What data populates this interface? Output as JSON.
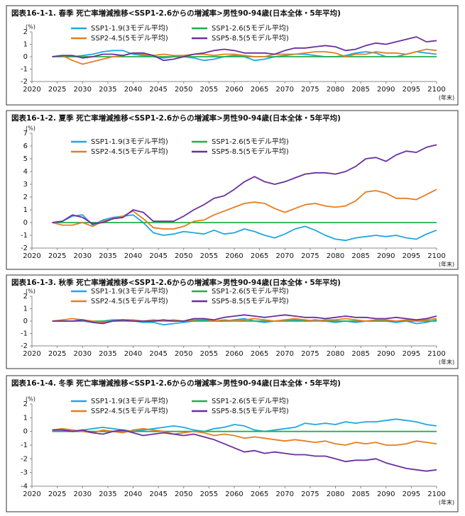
{
  "chart_data": [
    {
      "type": "line",
      "title": "図表16-1-1. 春季 死亡率増減推移<SSP1-2.6からの増減率>男性90-94歳(日本全体・5年平均)",
      "y_label": "(%)",
      "x_label": "(年末)",
      "x": [
        2024,
        2026,
        2028,
        2030,
        2032,
        2034,
        2036,
        2038,
        2040,
        2042,
        2044,
        2046,
        2048,
        2050,
        2052,
        2054,
        2056,
        2058,
        2060,
        2062,
        2064,
        2066,
        2068,
        2070,
        2072,
        2074,
        2076,
        2078,
        2080,
        2082,
        2084,
        2086,
        2088,
        2090,
        2092,
        2094,
        2096,
        2098,
        2100
      ],
      "xlim": [
        2020,
        2100
      ],
      "xticks": [
        2020,
        2025,
        2030,
        2035,
        2040,
        2045,
        2050,
        2055,
        2060,
        2065,
        2070,
        2075,
        2080,
        2085,
        2090,
        2095,
        2100
      ],
      "ylim": [
        -2,
        2
      ],
      "yticks": [
        -2,
        -1,
        0,
        1,
        2
      ],
      "series": [
        {
          "name": "SSP1-1.9(3モデル平均)",
          "color": "#1fa8de",
          "values": [
            0,
            0.1,
            0,
            0.1,
            0.2,
            0.4,
            0.5,
            0.5,
            0.2,
            0.1,
            0,
            -0.1,
            0,
            0,
            -0.1,
            -0.3,
            -0.2,
            0,
            0.1,
            0,
            -0.3,
            -0.2,
            0,
            0.1,
            0.2,
            0.2,
            0.1,
            0,
            0,
            0.1,
            0.3,
            0.4,
            0.3,
            0,
            0,
            0.2,
            0.4,
            0.3,
            0.2
          ]
        },
        {
          "name": "SSP1-2.6(5モデル平均)",
          "color": "#21b04b",
          "values": [
            0,
            0,
            0,
            0,
            0,
            0,
            0,
            0,
            0,
            0,
            0,
            0,
            0,
            0,
            0,
            0,
            0,
            0,
            0,
            0,
            0,
            0,
            0,
            0,
            0,
            0,
            0,
            0,
            0,
            0,
            0,
            0,
            0,
            0,
            0,
            0,
            0,
            0,
            0
          ]
        },
        {
          "name": "SSP2-4.5(5モデル平均)",
          "color": "#e57e22",
          "values": [
            0,
            0.1,
            -0.3,
            -0.6,
            -0.4,
            -0.2,
            0,
            0.1,
            0.3,
            0.2,
            0.1,
            0.2,
            0.1,
            0.1,
            0.2,
            0.2,
            0.1,
            0.2,
            0.2,
            0.1,
            0,
            0,
            0.2,
            0.2,
            0.2,
            0.3,
            0.4,
            0.4,
            0.3,
            0,
            0.2,
            0.2,
            0.4,
            0.3,
            0.3,
            0.2,
            0.4,
            0.6,
            0.5
          ]
        },
        {
          "name": "SSP5-8.5(5モデル平均)",
          "color": "#6b2f9e",
          "values": [
            0,
            0.1,
            0.1,
            -0.1,
            0,
            0.2,
            0.2,
            0.1,
            0.3,
            0.3,
            0.1,
            -0.3,
            -0.2,
            0,
            0.2,
            0.3,
            0.5,
            0.6,
            0.5,
            0.3,
            0.3,
            0.3,
            0.2,
            0.5,
            0.7,
            0.7,
            0.8,
            0.9,
            0.8,
            0.5,
            0.6,
            0.9,
            1.1,
            1.0,
            1.2,
            1.4,
            1.6,
            1.2,
            1.3
          ]
        }
      ]
    },
    {
      "type": "line",
      "title": "図表16-1-2. 夏季 死亡率増減推移<SSP1-2.6からの増減率>男性90-94歳(日本全体・5年平均)",
      "y_label": "(%)",
      "x_label": "(年末)",
      "x": [
        2024,
        2026,
        2028,
        2030,
        2032,
        2034,
        2036,
        2038,
        2040,
        2042,
        2044,
        2046,
        2048,
        2050,
        2052,
        2054,
        2056,
        2058,
        2060,
        2062,
        2064,
        2066,
        2068,
        2070,
        2072,
        2074,
        2076,
        2078,
        2080,
        2082,
        2084,
        2086,
        2088,
        2090,
        2092,
        2094,
        2096,
        2098,
        2100
      ],
      "xlim": [
        2020,
        2100
      ],
      "xticks": [
        2020,
        2025,
        2030,
        2035,
        2040,
        2045,
        2050,
        2055,
        2060,
        2065,
        2070,
        2075,
        2080,
        2085,
        2090,
        2095,
        2100
      ],
      "ylim": [
        -2,
        7
      ],
      "yticks": [
        -2,
        -1,
        0,
        1,
        2,
        3,
        4,
        5,
        6,
        7
      ],
      "series": [
        {
          "name": "SSP1-1.9(3モデル平均)",
          "color": "#1fa8de",
          "values": [
            0,
            0.1,
            0.5,
            0.6,
            -0.2,
            0.2,
            0.4,
            0.5,
            0.6,
            0,
            -0.8,
            -1.0,
            -0.9,
            -0.7,
            -0.8,
            -0.9,
            -0.6,
            -0.9,
            -0.8,
            -0.5,
            -0.7,
            -1.0,
            -1.2,
            -0.9,
            -0.5,
            -0.3,
            -0.6,
            -1.0,
            -1.3,
            -1.4,
            -1.2,
            -1.1,
            -1.0,
            -1.1,
            -1.0,
            -1.2,
            -1.3,
            -0.9,
            -0.6
          ]
        },
        {
          "name": "SSP1-2.6(5モデル平均)",
          "color": "#21b04b",
          "values": [
            0,
            0,
            0,
            0,
            0,
            0,
            0,
            0,
            0,
            0,
            0,
            0,
            0,
            0,
            0,
            0,
            0,
            0,
            0,
            0,
            0,
            0,
            0,
            0,
            0,
            0,
            0,
            0,
            0,
            0,
            0,
            0,
            0,
            0,
            0,
            0,
            0,
            0,
            0
          ]
        },
        {
          "name": "SSP2-4.5(5モデル平均)",
          "color": "#e57e22",
          "values": [
            0,
            -0.2,
            -0.2,
            0,
            -0.3,
            0.1,
            0.3,
            0.5,
            0.9,
            0.3,
            -0.4,
            -0.5,
            -0.5,
            -0.3,
            0.1,
            0.2,
            0.6,
            0.9,
            1.2,
            1.5,
            1.6,
            1.5,
            1.1,
            0.8,
            1.1,
            1.4,
            1.5,
            1.3,
            1.2,
            1.3,
            1.7,
            2.4,
            2.5,
            2.3,
            1.9,
            1.9,
            1.8,
            2.2,
            2.6
          ]
        },
        {
          "name": "SSP5-8.5(5モデル平均)",
          "color": "#6b2f9e",
          "values": [
            0,
            0.1,
            0.6,
            0.4,
            -0.1,
            0,
            0.3,
            0.4,
            1.0,
            0.8,
            0.1,
            0.1,
            0.1,
            0.5,
            1.0,
            1.4,
            1.9,
            2.1,
            2.6,
            3.2,
            3.6,
            3.2,
            3.0,
            3.2,
            3.5,
            3.8,
            3.9,
            3.9,
            3.8,
            4.0,
            4.4,
            5.0,
            5.1,
            4.8,
            5.3,
            5.6,
            5.5,
            5.9,
            6.1
          ]
        }
      ]
    },
    {
      "type": "line",
      "title": "図表16-1-3. 秋季 死亡率増減推移<SSP1-2.6からの増減率>男性90-94歳(日本全体・5年平均)",
      "y_label": "(%)",
      "x_label": "(年末)",
      "x": [
        2024,
        2026,
        2028,
        2030,
        2032,
        2034,
        2036,
        2038,
        2040,
        2042,
        2044,
        2046,
        2048,
        2050,
        2052,
        2054,
        2056,
        2058,
        2060,
        2062,
        2064,
        2066,
        2068,
        2070,
        2072,
        2074,
        2076,
        2078,
        2080,
        2082,
        2084,
        2086,
        2088,
        2090,
        2092,
        2094,
        2096,
        2098,
        2100
      ],
      "xlim": [
        2020,
        2100
      ],
      "xticks": [
        2020,
        2025,
        2030,
        2035,
        2040,
        2045,
        2050,
        2055,
        2060,
        2065,
        2070,
        2075,
        2080,
        2085,
        2090,
        2095,
        2100
      ],
      "ylim": [
        -2,
        2
      ],
      "yticks": [
        -2,
        -1,
        0,
        1,
        2
      ],
      "series": [
        {
          "name": "SSP1-1.9(3モデル平均)",
          "color": "#1fa8de",
          "values": [
            0,
            0,
            0,
            0,
            -0.1,
            0,
            0.1,
            0.1,
            0,
            -0.1,
            -0.1,
            -0.3,
            -0.2,
            -0.1,
            0,
            0.1,
            0,
            0,
            0.1,
            0.2,
            0,
            -0.1,
            0,
            0.1,
            0.1,
            0,
            0.1,
            0,
            -0.1,
            0,
            -0.1,
            0,
            0,
            0,
            -0.1,
            0,
            -0.2,
            -0.1,
            0.1
          ]
        },
        {
          "name": "SSP1-2.6(5モデル平均)",
          "color": "#21b04b",
          "values": [
            0,
            0,
            0,
            0,
            0,
            0,
            0,
            0,
            0,
            0,
            0,
            0,
            0,
            0,
            0,
            0,
            0,
            0,
            0,
            0,
            0,
            0,
            0,
            0,
            0,
            0,
            0,
            0,
            0,
            0,
            0,
            0,
            0,
            0,
            0,
            0,
            0,
            0,
            0
          ]
        },
        {
          "name": "SSP2-4.5(5モデル平均)",
          "color": "#e57e22",
          "values": [
            0,
            0.1,
            0.2,
            0.1,
            0,
            -0.1,
            0,
            0.1,
            0.1,
            0,
            0.1,
            0,
            0.1,
            0,
            0.1,
            0.2,
            0,
            0.1,
            0,
            0.1,
            0.2,
            0.1,
            0,
            0.1,
            0.2,
            0.1,
            0,
            0.1,
            0.1,
            0.2,
            0.1,
            0,
            0.1,
            0.1,
            0,
            0.1,
            0,
            0.1,
            0.2
          ]
        },
        {
          "name": "SSP5-8.5(5モデル平均)",
          "color": "#6b2f9e",
          "values": [
            0,
            0,
            0,
            0.1,
            -0.1,
            -0.2,
            0,
            0.1,
            0,
            0,
            0,
            0.1,
            0,
            0,
            0.2,
            0.2,
            0.1,
            0.3,
            0.4,
            0.5,
            0.4,
            0.3,
            0.4,
            0.5,
            0.4,
            0.3,
            0.3,
            0.2,
            0.3,
            0.4,
            0.3,
            0.3,
            0.2,
            0.2,
            0.3,
            0.2,
            0.1,
            0.2,
            0.4
          ]
        }
      ]
    },
    {
      "type": "line",
      "title": "図表16-1-4. 冬季 死亡率増減推移<SSP1-2.6からの増減率>男性90-94歳(日本全体・5年平均)",
      "y_label": "(%)",
      "x_label": "(年末)",
      "x": [
        2024,
        2026,
        2028,
        2030,
        2032,
        2034,
        2036,
        2038,
        2040,
        2042,
        2044,
        2046,
        2048,
        2050,
        2052,
        2054,
        2056,
        2058,
        2060,
        2062,
        2064,
        2066,
        2068,
        2070,
        2072,
        2074,
        2076,
        2078,
        2080,
        2082,
        2084,
        2086,
        2088,
        2090,
        2092,
        2094,
        2096,
        2098,
        2100
      ],
      "xlim": [
        2020,
        2100
      ],
      "xticks": [
        2020,
        2025,
        2030,
        2035,
        2040,
        2045,
        2050,
        2055,
        2060,
        2065,
        2070,
        2075,
        2080,
        2085,
        2090,
        2095,
        2100
      ],
      "ylim": [
        -4,
        2
      ],
      "yticks": [
        -4,
        -3,
        -2,
        -1,
        0,
        1,
        2
      ],
      "series": [
        {
          "name": "SSP1-1.9(3モデル平均)",
          "color": "#1fa8de",
          "values": [
            0.1,
            0.2,
            0,
            0.1,
            0.2,
            0.3,
            0.2,
            0.1,
            0,
            0.1,
            0.2,
            0.3,
            0.4,
            0.3,
            0.1,
            0,
            0.2,
            0.3,
            0.5,
            0.4,
            0.1,
            0,
            0.1,
            0.2,
            0.3,
            0.6,
            0.5,
            0.6,
            0.5,
            0.7,
            0.6,
            0.7,
            0.7,
            0.8,
            0.9,
            0.8,
            0.7,
            0.5,
            0.4
          ]
        },
        {
          "name": "SSP1-2.6(5モデル平均)",
          "color": "#21b04b",
          "values": [
            0,
            0,
            0,
            0,
            0,
            0,
            0,
            0,
            0,
            0,
            0,
            0,
            0,
            0,
            0,
            0,
            0,
            0,
            0,
            0,
            0,
            0,
            0,
            0,
            0,
            0,
            0,
            0,
            0,
            0,
            0,
            0,
            0,
            0,
            0,
            0,
            0,
            0,
            0
          ]
        },
        {
          "name": "SSP2-4.5(5モデル平均)",
          "color": "#e57e22",
          "values": [
            0.1,
            0.2,
            0.1,
            0,
            -0.1,
            0.1,
            0,
            -0.1,
            0.1,
            0.2,
            0.1,
            0,
            -0.2,
            -0.1,
            0,
            -0.1,
            -0.3,
            -0.2,
            -0.3,
            -0.5,
            -0.4,
            -0.5,
            -0.6,
            -0.7,
            -0.6,
            -0.7,
            -0.8,
            -0.7,
            -0.9,
            -1.0,
            -0.8,
            -0.9,
            -0.8,
            -1.0,
            -1.0,
            -0.9,
            -0.7,
            -0.8,
            -0.9
          ]
        },
        {
          "name": "SSP5-8.5(5モデル平均)",
          "color": "#6b2f9e",
          "values": [
            0.1,
            0.1,
            0,
            0.1,
            -0.1,
            -0.2,
            0,
            0.1,
            -0.1,
            -0.3,
            -0.2,
            -0.1,
            -0.2,
            -0.3,
            -0.2,
            -0.4,
            -0.6,
            -0.9,
            -1.2,
            -1.5,
            -1.4,
            -1.6,
            -1.5,
            -1.6,
            -1.7,
            -1.7,
            -1.8,
            -1.8,
            -2.0,
            -2.2,
            -2.1,
            -2.1,
            -2.0,
            -2.3,
            -2.5,
            -2.7,
            -2.8,
            -2.9,
            -2.8
          ]
        }
      ]
    }
  ]
}
